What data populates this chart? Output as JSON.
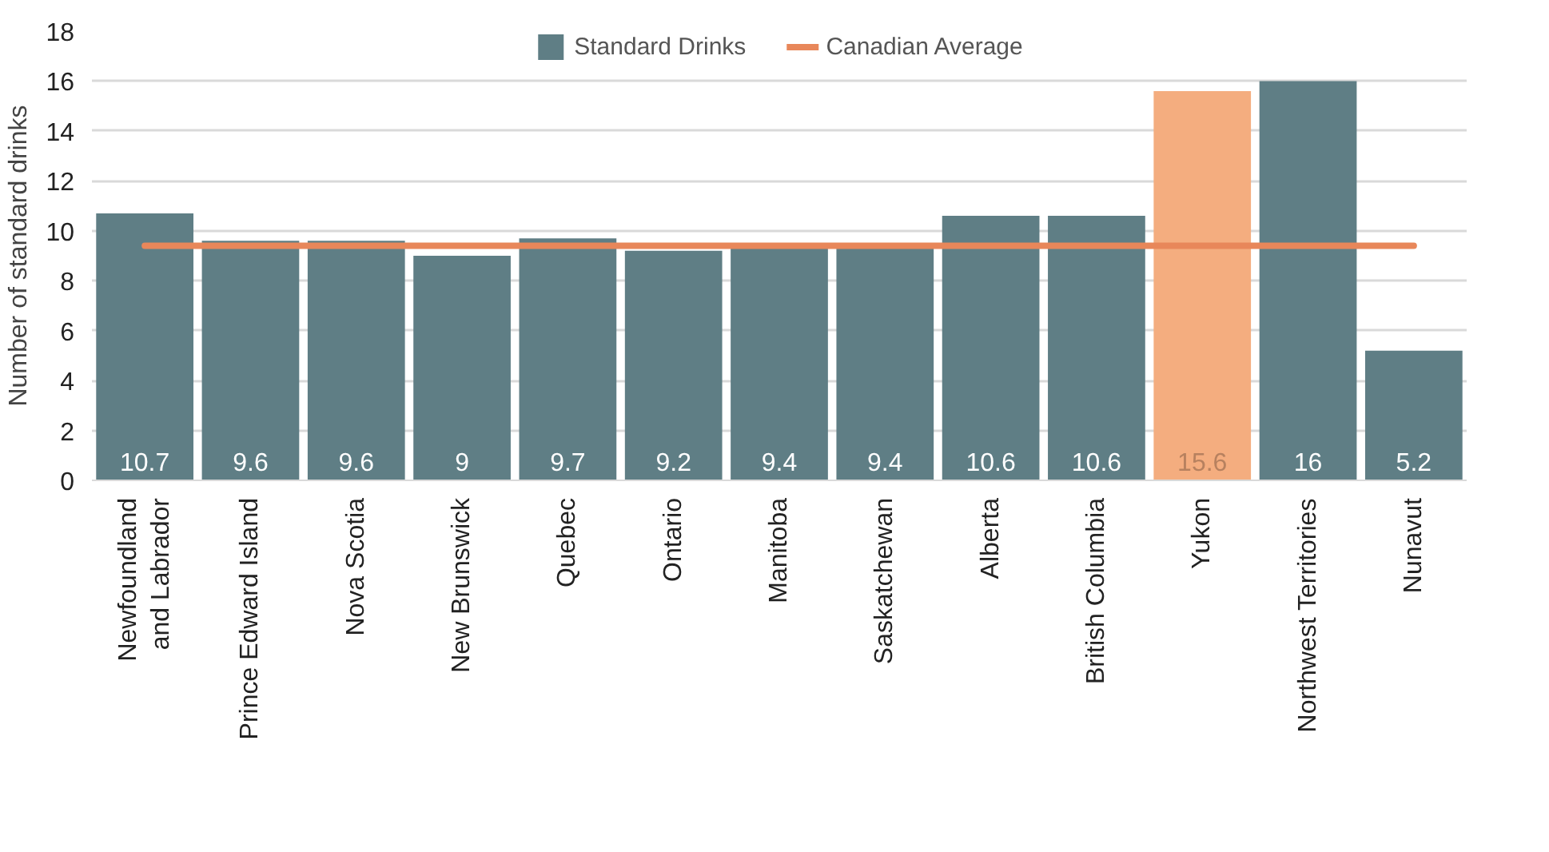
{
  "chart_data": {
    "type": "bar",
    "ylabel": "Number of standard drinks",
    "categories": [
      "Newfoundland and Labrador",
      "Prince Edward Island",
      "Nova Scotia",
      "New Brunswick",
      "Quebec",
      "Ontario",
      "Manitoba",
      "Saskatchewan",
      "Alberta",
      "British Columbia",
      "Yukon",
      "Northwest Territories",
      "Nunavut"
    ],
    "series": [
      {
        "name": "Standard Drinks",
        "colors": [
          "#5f7e85",
          "#5f7e85",
          "#5f7e85",
          "#5f7e85",
          "#5f7e85",
          "#5f7e85",
          "#5f7e85",
          "#5f7e85",
          "#5f7e85",
          "#5f7e85",
          "#f4ad7f",
          "#5f7e85",
          "#5f7e85"
        ],
        "values": [
          10.7,
          9.6,
          9.6,
          9,
          9.7,
          9.2,
          9.4,
          9.4,
          10.6,
          10.6,
          15.6,
          16,
          5.2
        ],
        "value_labels": [
          "10.7",
          "9.6",
          "9.6",
          "9",
          "9.7",
          "9.2",
          "9.4",
          "9.4",
          "10.6",
          "10.6",
          "15.6",
          "16",
          "5.2"
        ]
      },
      {
        "name": "Canadian Average",
        "type": "line",
        "color": "#e8875a",
        "values": [
          9.4,
          9.4,
          9.4,
          9.4,
          9.4,
          9.4,
          9.4,
          9.4,
          9.4,
          9.4,
          9.4,
          9.4,
          9.4
        ]
      }
    ],
    "ylim": [
      0,
      18
    ],
    "yticks": [
      0,
      2,
      4,
      6,
      8,
      10,
      12,
      14,
      16,
      18
    ],
    "grid": "y",
    "legend": "top"
  }
}
